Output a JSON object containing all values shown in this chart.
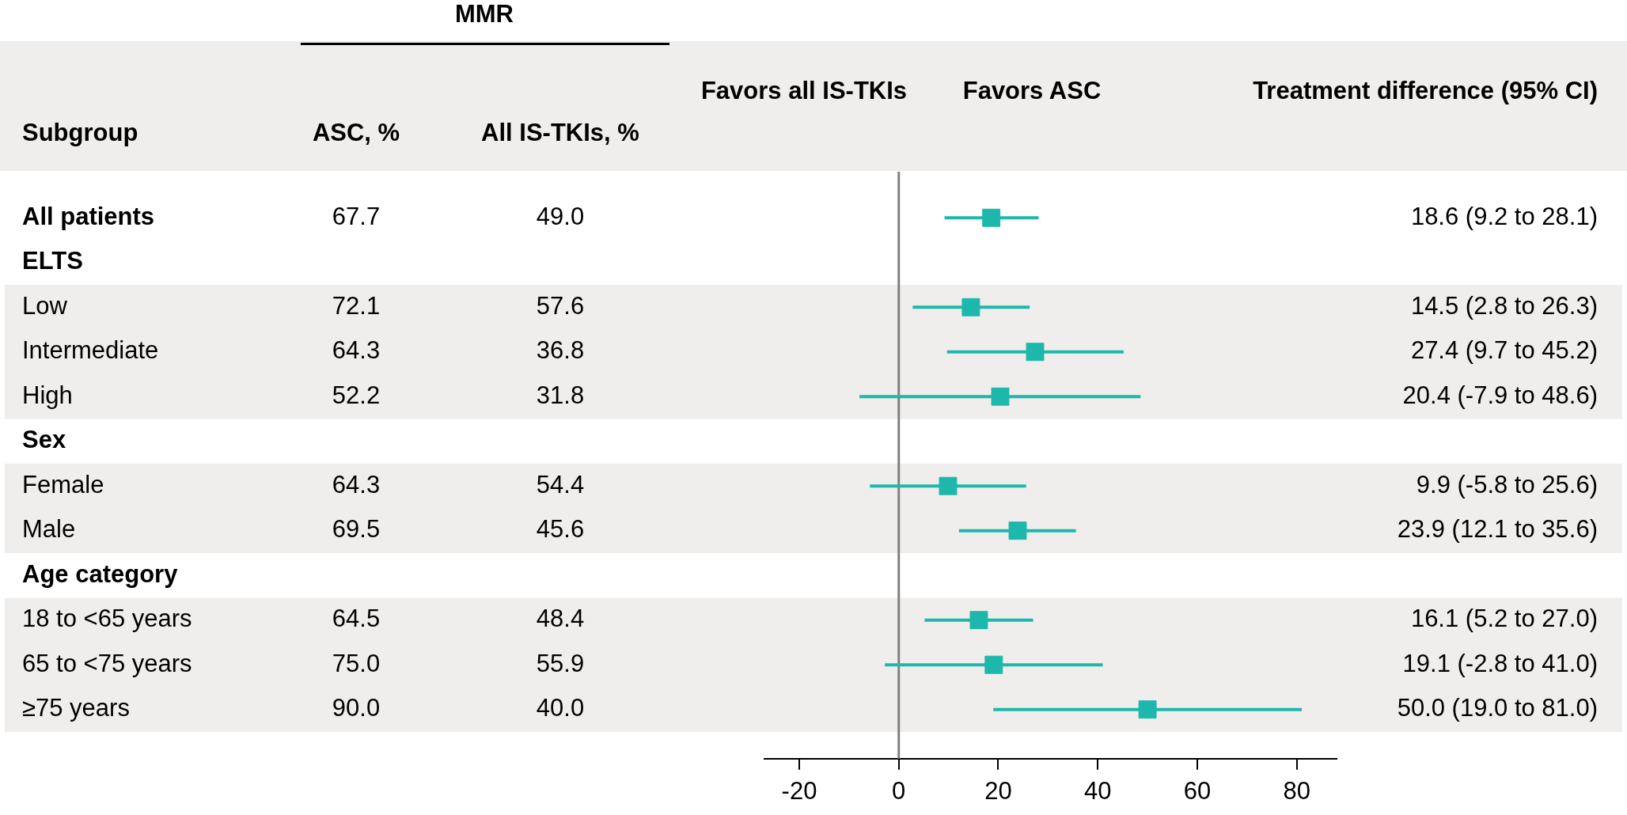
{
  "chart_data": [
    {
      "type": "other",
      "annotations": [
        "MMR",
        "Subgroup"
      ],
      "categories": [
        "All patients",
        "ELTS",
        "Low",
        "Intermediate",
        "High",
        "Sex",
        "Female",
        "Male",
        "Age category",
        "18 to <65 years",
        "65 to <75 years",
        "≥75 years"
      ],
      "series": [
        {
          "name": "ASC, %",
          "values": [
            67.7,
            null,
            72.1,
            64.3,
            52.2,
            null,
            64.3,
            69.5,
            null,
            64.5,
            75.0,
            90.0
          ],
          "value_labels": [
            "67.7",
            null,
            "72.1",
            "64.3",
            "52.2",
            null,
            "64.3",
            "69.5",
            null,
            "64.5",
            "75.0",
            "90.0"
          ]
        },
        {
          "name": "All IS-TKIs, %",
          "values": [
            49.0,
            null,
            57.6,
            36.8,
            31.8,
            null,
            54.4,
            45.6,
            null,
            48.4,
            55.9,
            40.0
          ],
          "value_labels": [
            "49.0",
            null,
            "57.6",
            "36.8",
            "31.8",
            null,
            "54.4",
            "45.6",
            null,
            "48.4",
            "55.9",
            "40.0"
          ]
        }
      ]
    },
    {
      "type": "scatter",
      "orientation": "horizontal",
      "annotations": [
        "Favors all IS-TKIs",
        "Favors ASC",
        "Treatment difference (95% CI)"
      ],
      "categories": [
        "All patients",
        "ELTS",
        "Low",
        "Intermediate",
        "High",
        "Sex",
        "Female",
        "Male",
        "Age category",
        "18 to <65 years",
        "65 to <75 years",
        "≥75 years"
      ],
      "tick_labels": "x",
      "series": [
        {
          "color": "#1db8ab",
          "values": [
            18.6,
            null,
            14.5,
            27.4,
            20.4,
            null,
            9.9,
            23.9,
            null,
            16.1,
            19.1,
            50.0
          ],
          "errors": [
            [
              9.2,
              28.1
            ],
            null,
            [
              2.8,
              26.3
            ],
            [
              9.7,
              45.2
            ],
            [
              -7.9,
              48.6
            ],
            null,
            [
              -5.8,
              25.6
            ],
            [
              12.1,
              35.6
            ],
            null,
            [
              5.2,
              27.0
            ],
            [
              -2.8,
              41.0
            ],
            [
              19.0,
              81.0
            ]
          ],
          "value_labels": [
            "18.6 (9.2 to 28.1)",
            null,
            "14.5 (2.8 to 26.3)",
            "27.4 (9.7 to 45.2)",
            "20.4 (-7.9 to 48.6)",
            null,
            "9.9 (-5.8 to 25.6)",
            "23.9 (12.1 to 35.6)",
            null,
            "16.1 (5.2 to 27.0)",
            "19.1 (-2.8 to 41.0)",
            "50.0 (19.0 to 81.0)"
          ]
        }
      ],
      "bands": [
        {
          "axis": "y",
          "from": "Low",
          "to": "High",
          "color": "#efeeec"
        },
        {
          "axis": "y",
          "from": "Female",
          "to": "Male",
          "color": "#efeeec"
        },
        {
          "axis": "y",
          "from": "18 to <65 years",
          "to": "≥75 years",
          "color": "#efeeec"
        }
      ],
      "ref_lines": [
        {
          "axis": "x",
          "value": 0,
          "color": "#808080"
        }
      ],
      "xlim": [
        -27,
        88
      ],
      "xticks": [
        -20,
        0,
        20,
        40,
        60,
        80
      ],
      "marker": "square",
      "legend": false
    }
  ]
}
